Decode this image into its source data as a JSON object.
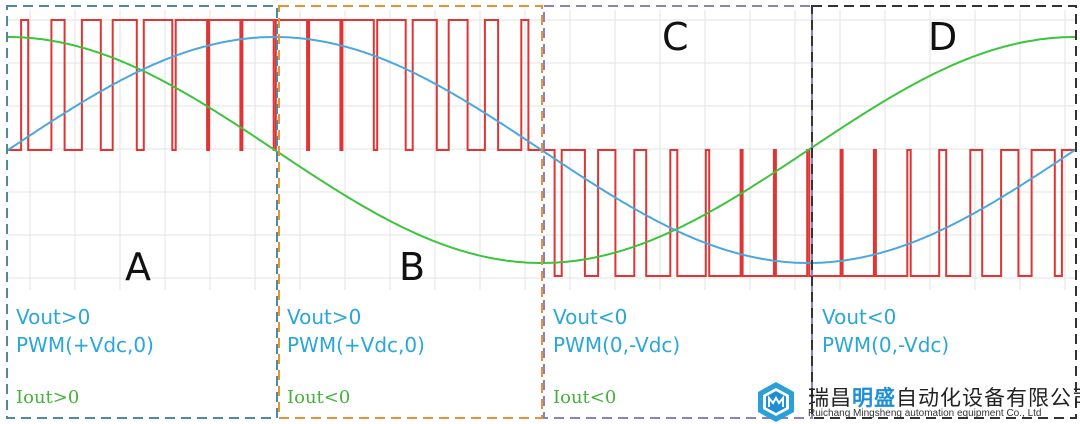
{
  "quadrants": [
    {
      "letter": "A",
      "vout": "Vout>0",
      "pwm": "PWM(+Vdc,0)",
      "iout": "Iout>0",
      "border_color": "#4e8a9e"
    },
    {
      "letter": "B",
      "vout": "Vout>0",
      "pwm": "PWM(+Vdc,0)",
      "iout": "Iout<0",
      "border_color": "#e8913a"
    },
    {
      "letter": "C",
      "vout": "Vout<0",
      "pwm": "PWM(0,-Vdc)",
      "iout": "Iout<0",
      "border_color": "#8a82b8"
    },
    {
      "letter": "D",
      "vout": "Vout<0",
      "pwm": "PWM(0,-Vdc)",
      "iout": "",
      "border_color": "#333333"
    }
  ],
  "colors": {
    "voltage_sine": "#4aa8de",
    "current_sine": "#3cc43c",
    "pwm": "#e03535",
    "grid": "#e3e3e3",
    "label_blue": "#2aa7d8",
    "label_green": "#45b23a"
  },
  "logo": {
    "name_part1": "瑞昌",
    "name_highlight": "明盛",
    "name_part2": "自动化设备有限公司",
    "english": "Ruichang Mingsheng automation equipment Co., Ltd",
    "icon": "cube-logo-icon"
  }
}
